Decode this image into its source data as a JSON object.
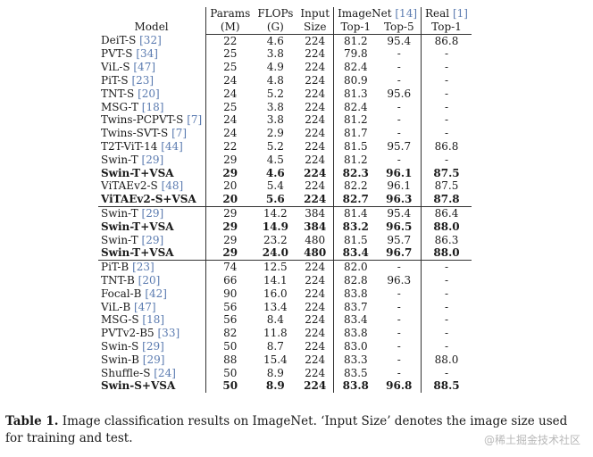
{
  "header": {
    "model": "Model",
    "params": "Params",
    "params_unit": "(M)",
    "flops": "FLOPs",
    "flops_unit": "(G)",
    "input": "Input",
    "input_sub": "Size",
    "imagenet": "ImageNet",
    "imagenet_cite": "[14]",
    "real": "Real",
    "real_cite": "[1]",
    "top1": "Top-1",
    "top5": "Top-5",
    "real_top1": "Top-1"
  },
  "groups": [
    {
      "rows": [
        {
          "model": "DeiT-S",
          "cite": "[32]",
          "params": "22",
          "flops": "4.6",
          "input": "224",
          "top1": "81.2",
          "top5": "95.4",
          "real": "86.8",
          "bold": false
        },
        {
          "model": "PVT-S",
          "cite": "[34]",
          "params": "25",
          "flops": "3.8",
          "input": "224",
          "top1": "79.8",
          "top5": "-",
          "real": "-",
          "bold": false
        },
        {
          "model": "ViL-S",
          "cite": "[47]",
          "params": "25",
          "flops": "4.9",
          "input": "224",
          "top1": "82.4",
          "top5": "-",
          "real": "-",
          "bold": false
        },
        {
          "model": "PiT-S",
          "cite": "[23]",
          "params": "24",
          "flops": "4.8",
          "input": "224",
          "top1": "80.9",
          "top5": "-",
          "real": "-",
          "bold": false
        },
        {
          "model": "TNT-S",
          "cite": "[20]",
          "params": "24",
          "flops": "5.2",
          "input": "224",
          "top1": "81.3",
          "top5": "95.6",
          "real": "-",
          "bold": false
        },
        {
          "model": "MSG-T",
          "cite": "[18]",
          "params": "25",
          "flops": "3.8",
          "input": "224",
          "top1": "82.4",
          "top5": "-",
          "real": "-",
          "bold": false
        },
        {
          "model": "Twins-PCPVT-S",
          "cite": "[7]",
          "params": "24",
          "flops": "3.8",
          "input": "224",
          "top1": "81.2",
          "top5": "-",
          "real": "-",
          "bold": false
        },
        {
          "model": "Twins-SVT-S",
          "cite": "[7]",
          "params": "24",
          "flops": "2.9",
          "input": "224",
          "top1": "81.7",
          "top5": "-",
          "real": "-",
          "bold": false
        },
        {
          "model": "T2T-ViT-14",
          "cite": "[44]",
          "params": "22",
          "flops": "5.2",
          "input": "224",
          "top1": "81.5",
          "top5": "95.7",
          "real": "86.8",
          "bold": false
        },
        {
          "model": "Swin-T",
          "cite": "[29]",
          "params": "29",
          "flops": "4.5",
          "input": "224",
          "top1": "81.2",
          "top5": "-",
          "real": "-",
          "bold": false
        },
        {
          "model": "Swin-T+VSA",
          "cite": "",
          "params": "29",
          "flops": "4.6",
          "input": "224",
          "top1": "82.3",
          "top5": "96.1",
          "real": "87.5",
          "bold": true
        },
        {
          "model": "ViTAEv2-S",
          "cite": "[48]",
          "params": "20",
          "flops": "5.4",
          "input": "224",
          "top1": "82.2",
          "top5": "96.1",
          "real": "87.5",
          "bold": false
        },
        {
          "model": "ViTAEv2-S+VSA",
          "cite": "",
          "params": "20",
          "flops": "5.6",
          "input": "224",
          "top1": "82.7",
          "top5": "96.3",
          "real": "87.8",
          "bold": true
        }
      ]
    },
    {
      "rows": [
        {
          "model": "Swin-T",
          "cite": "[29]",
          "params": "29",
          "flops": "14.2",
          "input": "384",
          "top1": "81.4",
          "top5": "95.4",
          "real": "86.4",
          "bold": false
        },
        {
          "model": "Swin-T+VSA",
          "cite": "",
          "params": "29",
          "flops": "14.9",
          "input": "384",
          "top1": "83.2",
          "top5": "96.5",
          "real": "88.0",
          "bold": true
        },
        {
          "model": "Swin-T",
          "cite": "[29]",
          "params": "29",
          "flops": "23.2",
          "input": "480",
          "top1": "81.5",
          "top5": "95.7",
          "real": "86.3",
          "bold": false
        },
        {
          "model": "Swin-T+VSA",
          "cite": "",
          "params": "29",
          "flops": "24.0",
          "input": "480",
          "top1": "83.4",
          "top5": "96.7",
          "real": "88.0",
          "bold": true
        }
      ]
    },
    {
      "rows": [
        {
          "model": "PiT-B",
          "cite": "[23]",
          "params": "74",
          "flops": "12.5",
          "input": "224",
          "top1": "82.0",
          "top5": "-",
          "real": "-",
          "bold": false
        },
        {
          "model": "TNT-B",
          "cite": "[20]",
          "params": "66",
          "flops": "14.1",
          "input": "224",
          "top1": "82.8",
          "top5": "96.3",
          "real": "-",
          "bold": false
        },
        {
          "model": "Focal-B",
          "cite": "[42]",
          "params": "90",
          "flops": "16.0",
          "input": "224",
          "top1": "83.8",
          "top5": "-",
          "real": "-",
          "bold": false
        },
        {
          "model": "ViL-B",
          "cite": "[47]",
          "params": "56",
          "flops": "13.4",
          "input": "224",
          "top1": "83.7",
          "top5": "-",
          "real": "-",
          "bold": false
        },
        {
          "model": "MSG-S",
          "cite": "[18]",
          "params": "56",
          "flops": "8.4",
          "input": "224",
          "top1": "83.4",
          "top5": "-",
          "real": "-",
          "bold": false
        },
        {
          "model": "PVTv2-B5",
          "cite": "[33]",
          "params": "82",
          "flops": "11.8",
          "input": "224",
          "top1": "83.8",
          "top5": "-",
          "real": "-",
          "bold": false
        },
        {
          "model": "Swin-S",
          "cite": "[29]",
          "params": "50",
          "flops": "8.7",
          "input": "224",
          "top1": "83.0",
          "top5": "-",
          "real": "-",
          "bold": false
        },
        {
          "model": "Swin-B",
          "cite": "[29]",
          "params": "88",
          "flops": "15.4",
          "input": "224",
          "top1": "83.3",
          "top5": "-",
          "real": "88.0",
          "bold": false
        },
        {
          "model": "Shuffle-S",
          "cite": "[24]",
          "params": "50",
          "flops": "8.9",
          "input": "224",
          "top1": "83.5",
          "top5": "-",
          "real": "-",
          "bold": false
        },
        {
          "model": "Swin-S+VSA",
          "cite": "",
          "params": "50",
          "flops": "8.9",
          "input": "224",
          "top1": "83.8",
          "top5": "96.8",
          "real": "88.5",
          "bold": true
        }
      ]
    }
  ],
  "caption": {
    "label": "Table 1.",
    "text": " Image classification results on ImageNet. ‘Input Size’ denotes the image size used for training and test."
  },
  "watermark": "@稀土掘金技术社区"
}
